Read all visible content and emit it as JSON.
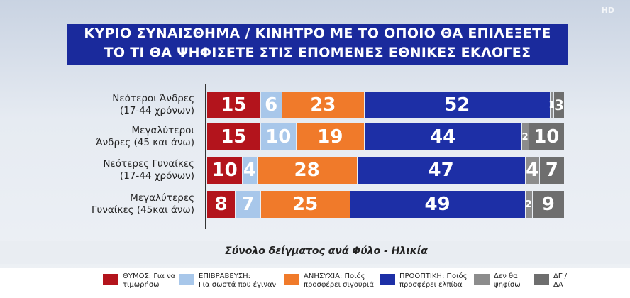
{
  "chart_data": {
    "type": "stacked-barh",
    "title": "ΚΥΡΙΟ ΣΥΝΑΙΣΘΗΜΑ / ΚΙΝΗΤΡΟ ΜΕ ΤΟ ΟΠΟΙΟ ΘΑ ΕΠΙΛΕΞΕΤΕ\nΤΟ ΤΙ ΘΑ ΨΗΦΙΣΕΤΕ ΣΤΙΣ ΕΠΟΜΕΝΕΣ ΕΘΝΙΚΕΣ ΕΚΛΟΓΕΣ",
    "subtitle": "Σύνολο δείγματος ανά Φύλο - Ηλικία",
    "logo": "HD",
    "categories": [
      "Νεότεροι Άνδρες\n(17-44 χρόνων)",
      "Μεγαλύτεροι\nΆνδρες (45 και άνω)",
      "Νεότερες Γυναίκες\n(17-44 χρόνων)",
      "Μεγαλύτερες\nΓυναίκες (45και άνω)"
    ],
    "xlim": [
      0,
      100
    ],
    "series": [
      {
        "name": "ΘΥΜΟΣ: Για να\nτιμωρήσω",
        "color": "#b3141c",
        "values": [
          15,
          15,
          10,
          8
        ]
      },
      {
        "name": "ΕΠΙΒΡΑΒΕΥΣΗ:\nΓια σωστά που έγιναν",
        "color": "#a8c7ea",
        "values": [
          6,
          10,
          4,
          7
        ]
      },
      {
        "name": "ΑΝΗΣΥΧΙΑ: Ποιός\nπροσφέρει σιγουριά",
        "color": "#f07a2a",
        "values": [
          23,
          19,
          28,
          25
        ]
      },
      {
        "name": "ΠΡΟΟΠΤΙΚΗ: Ποιός\nπροσφέρει ελπίδα",
        "color": "#1d2fa6",
        "values": [
          52,
          44,
          47,
          49
        ]
      },
      {
        "name": "Δεν θα\nψηφίσω",
        "color": "#8c8c8c",
        "values": [
          1,
          2,
          4,
          2
        ]
      },
      {
        "name": "ΔΓ /\nΔΑ",
        "color": "#6e6e6e",
        "values": [
          3,
          10,
          7,
          9
        ]
      }
    ]
  }
}
